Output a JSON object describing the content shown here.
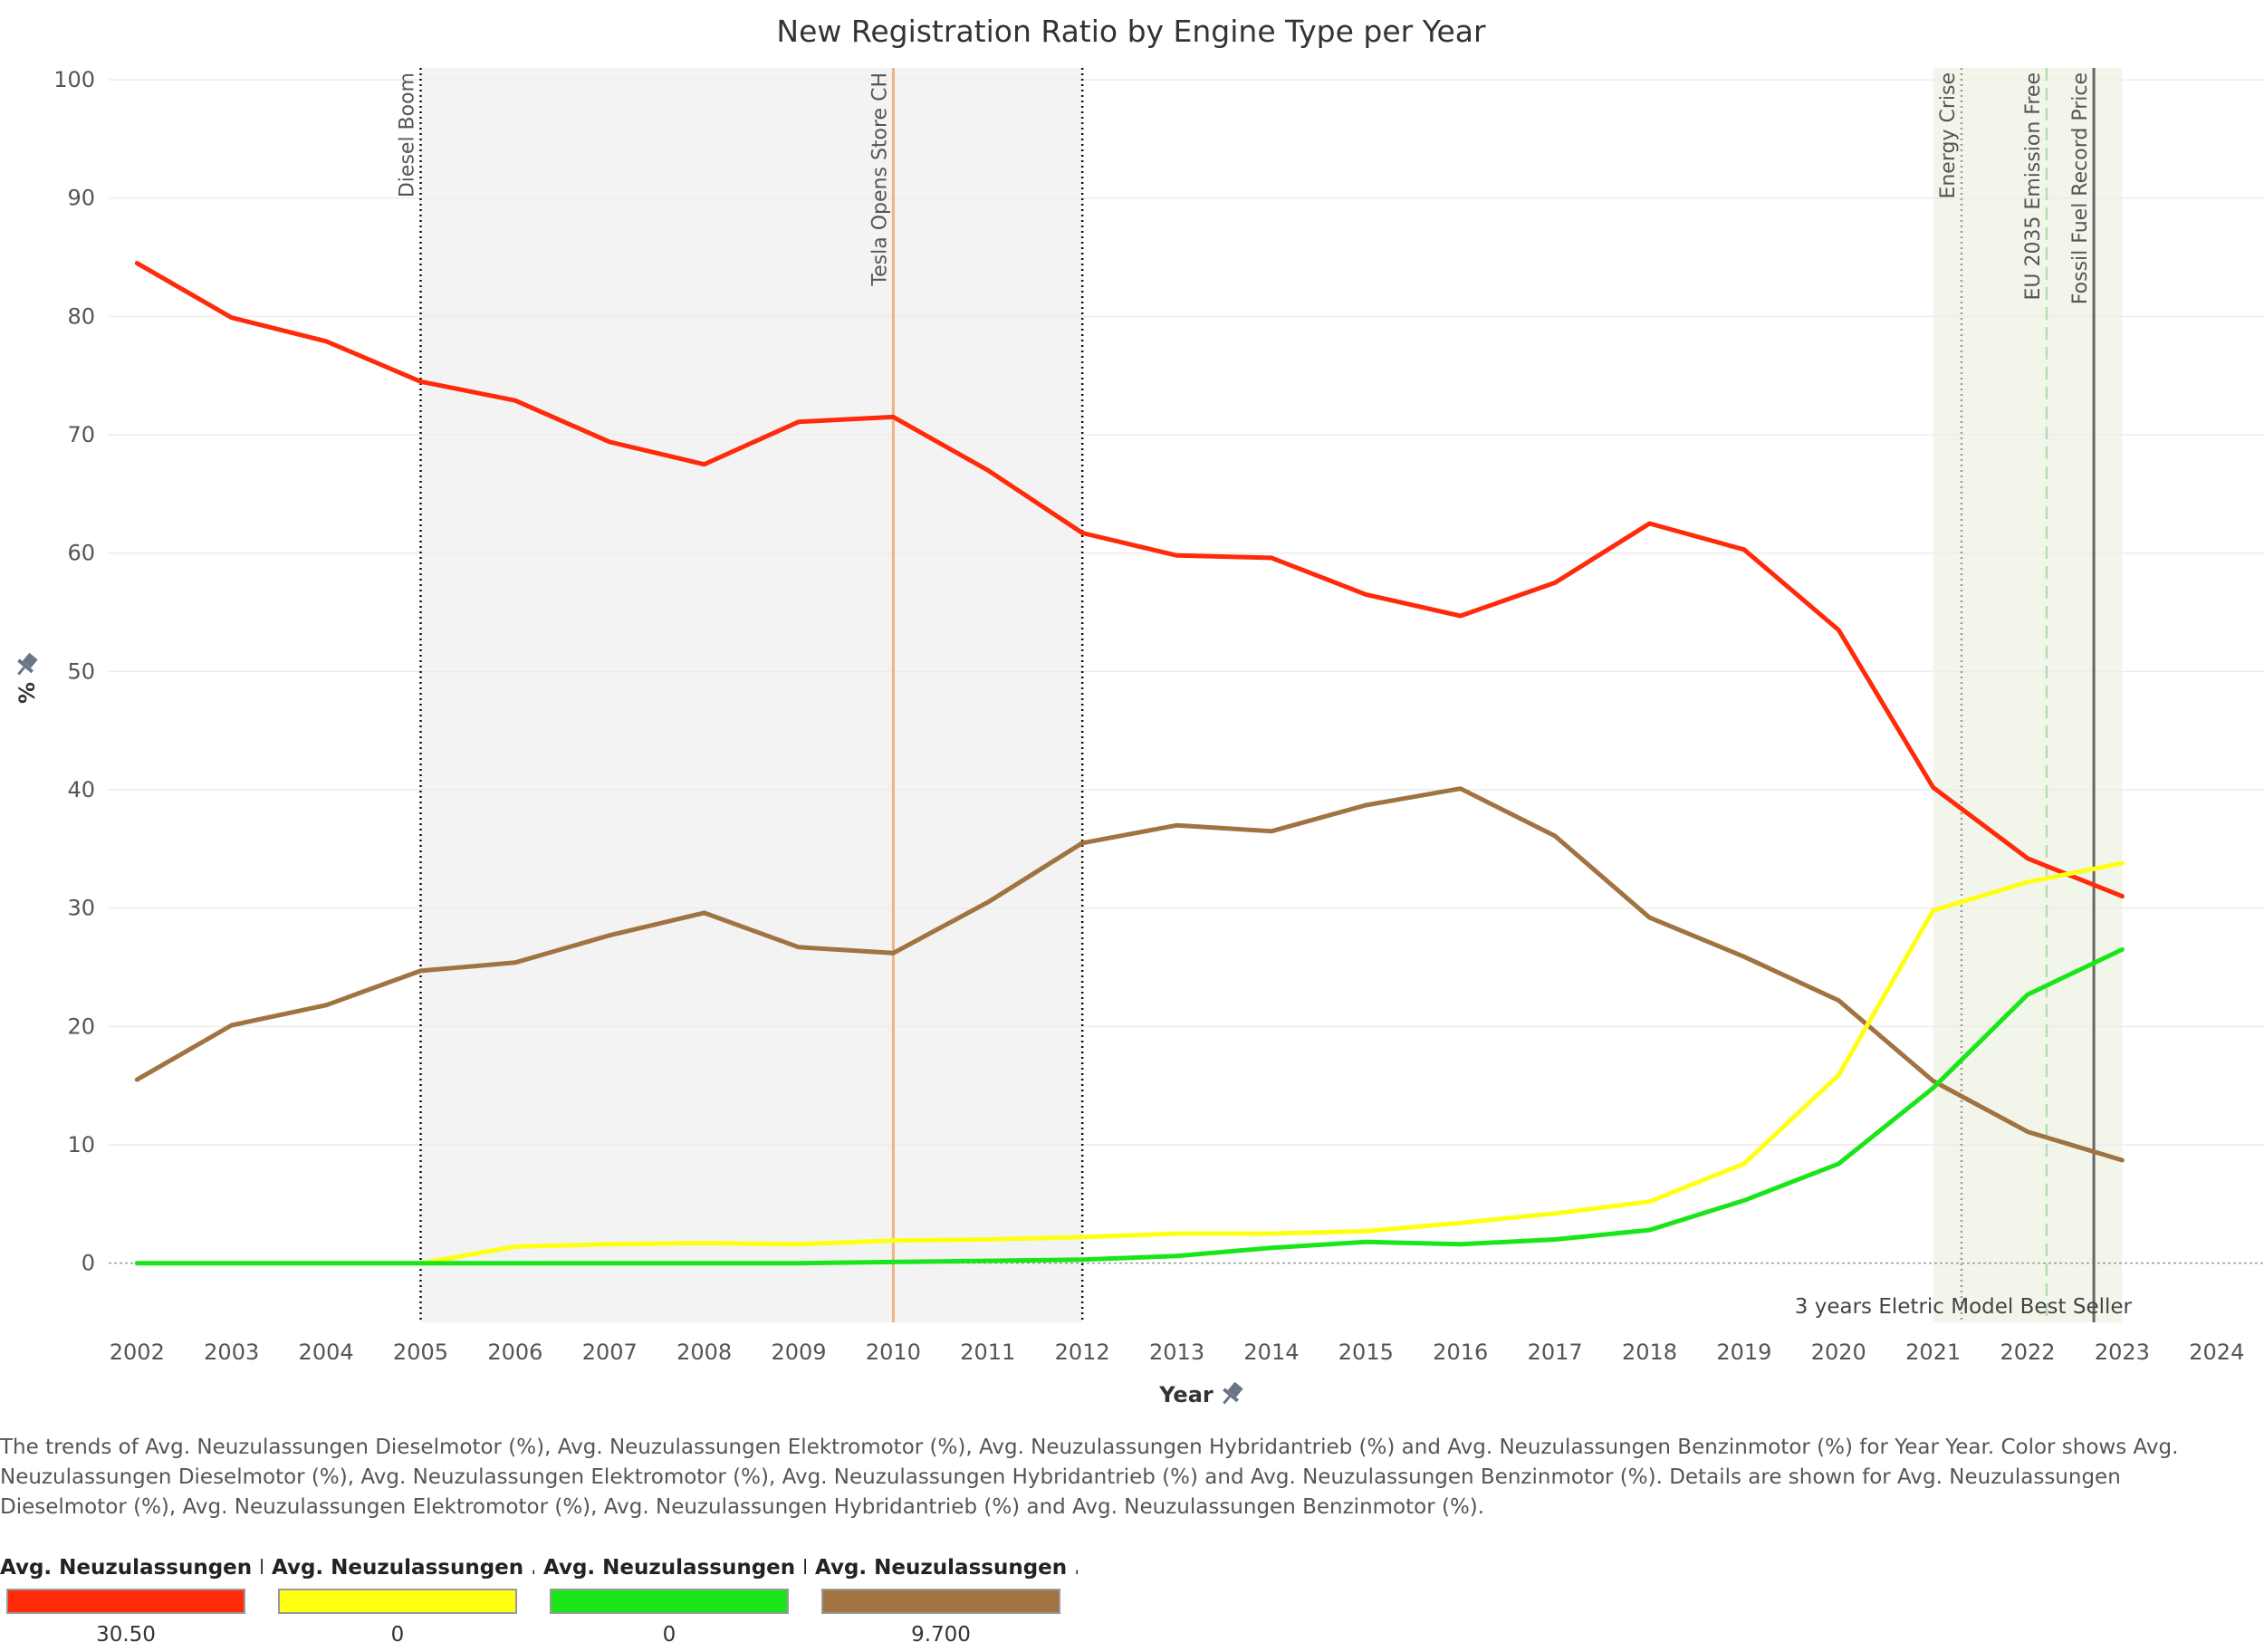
{
  "chart_data": {
    "type": "line",
    "title": "New Registration Ratio by Engine Type per Year",
    "xlabel": "Year",
    "ylabel": "%",
    "x_ticks": [
      "2002",
      "2003",
      "2004",
      "2005",
      "2006",
      "2007",
      "2008",
      "2009",
      "2010",
      "2011",
      "2012",
      "2013",
      "2014",
      "2015",
      "2016",
      "2017",
      "2018",
      "2019",
      "2020",
      "2021",
      "2022",
      "2023",
      "2024"
    ],
    "xlim": [
      2001.7,
      2024.5
    ],
    "ylim": [
      -5,
      101
    ],
    "y_ticks": [
      0,
      10,
      20,
      30,
      40,
      50,
      60,
      70,
      80,
      90,
      100
    ],
    "grid": true,
    "x": [
      2002,
      2003,
      2004,
      2005,
      2006,
      2007,
      2008,
      2009,
      2010,
      2011,
      2012,
      2013,
      2014,
      2015,
      2016,
      2017,
      2018,
      2019,
      2020,
      2021,
      2022,
      2023
    ],
    "series": [
      {
        "color": "#ff2a0a",
        "values": [
          84.5,
          79.9,
          77.9,
          74.5,
          72.9,
          69.4,
          67.5,
          71.1,
          71.5,
          67.0,
          61.7,
          59.8,
          59.6,
          56.5,
          54.7,
          57.5,
          62.5,
          60.3,
          53.5,
          40.2,
          34.2,
          31.0
        ]
      },
      {
        "color": "#a07340",
        "values": [
          15.5,
          20.1,
          21.8,
          24.7,
          25.4,
          27.7,
          29.6,
          26.7,
          26.2,
          30.5,
          35.5,
          37.0,
          36.5,
          38.7,
          40.1,
          36.1,
          29.2,
          25.9,
          22.2,
          15.4,
          11.1,
          8.7
        ]
      },
      {
        "color": "#ffff14",
        "values": [
          null,
          null,
          null,
          0.0,
          1.4,
          1.6,
          1.7,
          1.6,
          1.9,
          2.0,
          2.2,
          2.5,
          2.5,
          2.7,
          3.4,
          4.2,
          5.2,
          8.4,
          15.9,
          29.8,
          32.2,
          33.8
        ]
      },
      {
        "color": "#19e619",
        "values": [
          0.0,
          0.0,
          0.0,
          0.0,
          0.0,
          0.0,
          0.0,
          0.0,
          0.1,
          0.2,
          0.3,
          0.6,
          1.3,
          1.8,
          1.6,
          2.0,
          2.8,
          5.3,
          8.4,
          14.8,
          22.7,
          26.5
        ]
      }
    ],
    "reference_bands": [
      {
        "from": 2005,
        "to": 2012,
        "color": "#f3f3f3"
      },
      {
        "from": 2021,
        "to": 2023,
        "color": "#f2f6ea"
      }
    ],
    "reference_lines": [
      {
        "x": 2005,
        "label": "Diesel Boom",
        "style": "dotted",
        "color": "#111111"
      },
      {
        "x": 2012,
        "label": "",
        "style": "dotted",
        "color": "#111111"
      },
      {
        "x": 2010,
        "label": "Tesla Opens Store CH",
        "style": "solid",
        "color": "#f2b27e"
      },
      {
        "x": 2021.3,
        "label": "Energy Crise",
        "style": "dotted",
        "color": "#9aa08a"
      },
      {
        "x": 2022.2,
        "label": "EU 2035 Emission Free",
        "style": "dashed",
        "color": "#b5ddb0"
      },
      {
        "x": 2022.7,
        "label": "Fossil Fuel Record Price",
        "style": "solid",
        "color": "#666666"
      }
    ],
    "annotation": "3 years Eletric Model Best Seller",
    "caption": "The trends of Avg. Neuzulassungen  Dieselmotor (%), Avg. Neuzulassungen  Elektromotor (%), Avg. Neuzulassungen  Hybridantrieb (%) and Avg. Neuzulassungen Benzinmotor (%) for Year Year.  Color shows Avg. Neuzulassungen  Dieselmotor (%), Avg. Neuzulassungen  Elektromotor (%), Avg. Neuzulassungen  Hybridantrieb (%) and Avg. Neuzulassungen Benzinmotor (%).  Details are shown for Avg. Neuzulassungen  Dieselmotor (%), Avg. Neuzulassungen  Elektromotor (%), Avg. Neuzulassungen  Hybridantrieb (%) and Avg. Neuzulassungen Benzinmotor (%).",
    "legend": [
      {
        "title": "Avg. Neuzulassungen B..",
        "color": "#ff2a0a",
        "value": "30.50"
      },
      {
        "title": "Avg. Neuzulassungen  ..",
        "color": "#ffff14",
        "value": "0"
      },
      {
        "title": "Avg. Neuzulassungen  E..",
        "color": "#19e619",
        "value": "0"
      },
      {
        "title": "Avg. Neuzulassungen  ..",
        "color": "#a07340",
        "value": "9.700"
      }
    ]
  }
}
